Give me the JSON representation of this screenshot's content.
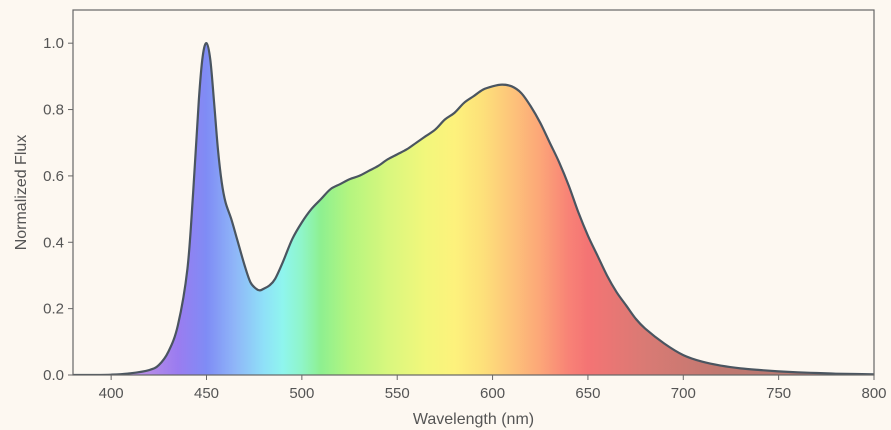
{
  "chart_data": {
    "type": "area",
    "title": "",
    "xlabel": "Wavelength (nm)",
    "ylabel": "Normalized Flux",
    "xlim": [
      380,
      800
    ],
    "ylim": [
      0,
      1.1
    ],
    "grid": false,
    "legend": "none",
    "x_ticks": [
      "400",
      "450",
      "500",
      "550",
      "600",
      "650",
      "700",
      "750",
      "800"
    ],
    "y_ticks": [
      "0.0",
      "0.2",
      "0.4",
      "0.6",
      "0.8",
      "1.0"
    ],
    "series": [
      {
        "x": [
          380,
          390,
          400,
          410,
          420,
          425,
          430,
          435,
          440,
          443,
          446,
          448,
          450,
          452,
          454,
          456,
          458,
          460,
          463,
          466,
          470,
          473,
          476,
          478,
          480,
          483,
          486,
          490,
          495,
          500,
          505,
          510,
          515,
          520,
          525,
          530,
          535,
          540,
          545,
          550,
          555,
          560,
          565,
          570,
          575,
          580,
          585,
          590,
          595,
          600,
          605,
          610,
          615,
          620,
          625,
          630,
          635,
          640,
          645,
          650,
          655,
          660,
          665,
          670,
          675,
          680,
          690,
          700,
          710,
          720,
          730,
          740,
          750,
          760,
          770,
          780,
          790,
          800
        ],
        "y": [
          0.0,
          0.0,
          0.001,
          0.005,
          0.015,
          0.03,
          0.07,
          0.15,
          0.32,
          0.55,
          0.83,
          0.96,
          1.0,
          0.95,
          0.82,
          0.68,
          0.58,
          0.52,
          0.47,
          0.41,
          0.33,
          0.28,
          0.26,
          0.255,
          0.26,
          0.27,
          0.29,
          0.34,
          0.41,
          0.46,
          0.5,
          0.53,
          0.56,
          0.575,
          0.59,
          0.6,
          0.615,
          0.63,
          0.65,
          0.665,
          0.68,
          0.7,
          0.72,
          0.74,
          0.77,
          0.79,
          0.82,
          0.84,
          0.86,
          0.87,
          0.875,
          0.87,
          0.85,
          0.81,
          0.76,
          0.7,
          0.64,
          0.57,
          0.49,
          0.42,
          0.36,
          0.3,
          0.25,
          0.21,
          0.17,
          0.14,
          0.095,
          0.06,
          0.04,
          0.028,
          0.02,
          0.015,
          0.011,
          0.008,
          0.006,
          0.004,
          0.003,
          0.002
        ]
      }
    ],
    "colors": {
      "background": "#fdf8f1",
      "axis": "#666666",
      "line": "#4a5560"
    }
  }
}
